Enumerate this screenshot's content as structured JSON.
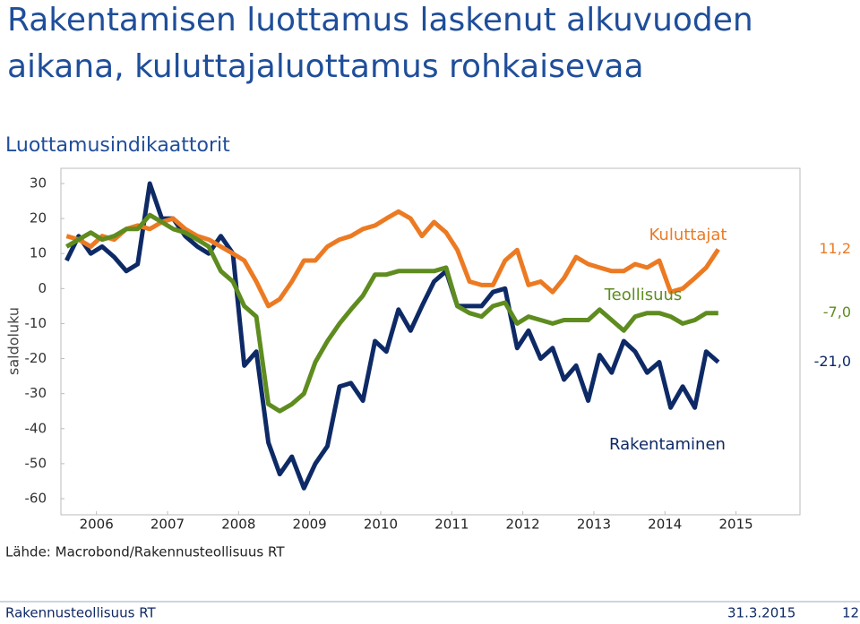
{
  "header": {
    "title_line1": "Rakentamisen luottamus laskenut alkuvuoden",
    "title_line2": "aikana, kuluttajaluottamus rohkaisevaa"
  },
  "chart_data": {
    "type": "line",
    "title": "Luottamusindikaattorit",
    "y_label": "saldoluku",
    "x": [
      2005.58,
      2005.75,
      2005.92,
      2006.08,
      2006.25,
      2006.42,
      2006.58,
      2006.75,
      2006.92,
      2007.08,
      2007.25,
      2007.42,
      2007.58,
      2007.75,
      2007.92,
      2008.08,
      2008.25,
      2008.42,
      2008.58,
      2008.75,
      2008.92,
      2009.08,
      2009.25,
      2009.42,
      2009.58,
      2009.75,
      2009.92,
      2010.08,
      2010.25,
      2010.42,
      2010.58,
      2010.75,
      2010.92,
      2011.08,
      2011.25,
      2011.42,
      2011.58,
      2011.75,
      2011.92,
      2012.08,
      2012.25,
      2012.42,
      2012.58,
      2012.75,
      2012.92,
      2013.08,
      2013.25,
      2013.42,
      2013.58,
      2013.75,
      2013.92,
      2014.08,
      2014.25,
      2014.42,
      2014.58,
      2014.75
    ],
    "xlim": [
      2005.5,
      2015.9
    ],
    "xticks": [
      2006,
      2007,
      2008,
      2009,
      2010,
      2011,
      2012,
      2013,
      2014,
      2015
    ],
    "ylim": [
      -60,
      30
    ],
    "yticks": [
      30,
      20,
      10,
      0,
      -10,
      -20,
      -30,
      -40,
      -50,
      -60
    ],
    "series": [
      {
        "name": "Rakentaminen",
        "color": "#0e2a66",
        "last_label": "-21,0",
        "values": [
          8,
          15,
          10,
          12,
          9,
          5,
          7,
          30,
          20,
          20,
          15,
          12,
          10,
          15,
          10,
          -22,
          -18,
          -44,
          -53,
          -48,
          -57,
          -50,
          -45,
          -28,
          -27,
          -32,
          -15,
          -18,
          -6,
          -12,
          -5,
          2,
          5,
          -5,
          -5,
          -5,
          -1,
          0,
          -17,
          -12,
          -20,
          -17,
          -26,
          -22,
          -32,
          -19,
          -24,
          -15,
          -18,
          -24,
          -21,
          -34,
          -28,
          -34,
          -18,
          -21.0
        ]
      },
      {
        "name": "Kuluttajat",
        "color": "#ec7a22",
        "last_label": "11,2",
        "values": [
          15,
          14,
          12,
          15,
          14,
          17,
          18,
          17,
          19,
          20,
          17,
          15,
          14,
          12,
          10,
          8,
          2,
          -5,
          -3,
          2,
          8,
          8,
          12,
          14,
          15,
          17,
          18,
          20,
          22,
          20,
          15,
          19,
          16,
          11,
          2,
          1,
          1,
          8,
          11,
          1,
          2,
          -1,
          3,
          9,
          7,
          6,
          5,
          5,
          7,
          6,
          8,
          -1,
          0,
          3,
          6,
          11.2
        ]
      },
      {
        "name": "Teollisuus",
        "color": "#5e8c1f",
        "last_label": "-7,0",
        "values": [
          12,
          14,
          16,
          14,
          15,
          17,
          17,
          21,
          19,
          17,
          16,
          14,
          12,
          5,
          2,
          -5,
          -8,
          -33,
          -35,
          -33,
          -30,
          -21,
          -15,
          -10,
          -6,
          -2,
          4,
          4,
          5,
          5,
          5,
          5,
          6,
          -5,
          -7,
          -8,
          -5,
          -4,
          -10,
          -8,
          -9,
          -10,
          -9,
          -9,
          -9,
          -6,
          -9,
          -12,
          -8,
          -7,
          -7,
          -8,
          -10,
          -9,
          -7,
          -7.0
        ]
      }
    ]
  },
  "source": "Lähde: Macrobond/Rakennusteollisuus RT",
  "footer": {
    "org": "Rakennusteollisuus RT",
    "date": "31.3.2015",
    "page": "12"
  }
}
